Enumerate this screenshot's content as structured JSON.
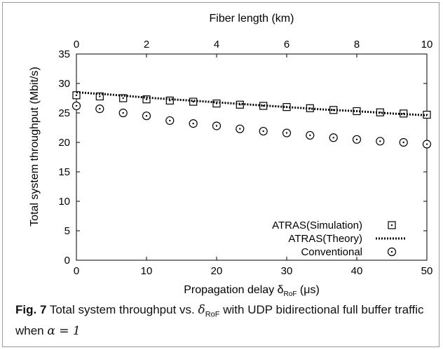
{
  "chart_data": {
    "type": "line",
    "xlabel": "Propagation delay δ",
    "xlabel_sub": "RoF",
    "xlabel_unit": " (μs)",
    "x2label": "Fiber length (km)",
    "ylabel": "Total system throughput (Mbit/s)",
    "xlim": [
      0,
      50
    ],
    "ylim": [
      0,
      35
    ],
    "x2lim": [
      0,
      10
    ],
    "xticks": [
      0,
      10,
      20,
      30,
      40,
      50
    ],
    "yticks": [
      0,
      5,
      10,
      15,
      20,
      25,
      30,
      35
    ],
    "x2ticks": [
      0,
      2,
      4,
      6,
      8,
      10
    ],
    "grid": false,
    "legend_position": "bottom-right",
    "series": [
      {
        "name": "ATRAS(Simulation)",
        "style": "boxed-dot-marker",
        "x": [
          0,
          3.33,
          6.67,
          10,
          13.33,
          16.67,
          20,
          23.33,
          26.67,
          30,
          33.33,
          36.67,
          40,
          43.33,
          46.67,
          50
        ],
        "y": [
          28.0,
          27.8,
          27.5,
          27.3,
          27.1,
          26.9,
          26.6,
          26.4,
          26.2,
          26.0,
          25.8,
          25.5,
          25.3,
          25.1,
          24.9,
          24.7
        ]
      },
      {
        "name": "ATRAS(Theory)",
        "style": "dotted-line",
        "x": [
          0,
          5,
          10,
          15,
          20,
          25,
          30,
          35,
          40,
          45,
          50
        ],
        "y": [
          28.5,
          28.1,
          27.6,
          27.2,
          26.8,
          26.4,
          26.0,
          25.6,
          25.3,
          24.9,
          24.6
        ]
      },
      {
        "name": "Conventional",
        "style": "circled-dot-marker",
        "x": [
          0,
          3.33,
          6.67,
          10,
          13.33,
          16.67,
          20,
          23.33,
          26.67,
          30,
          33.33,
          36.67,
          40,
          43.33,
          46.67,
          50
        ],
        "y": [
          26.2,
          25.7,
          25.0,
          24.5,
          23.7,
          23.2,
          22.8,
          22.3,
          21.9,
          21.6,
          21.2,
          20.8,
          20.5,
          20.2,
          20.0,
          19.7
        ]
      }
    ]
  },
  "caption": {
    "label": "Fig. 7",
    "text_1": " Total system throughput vs. ",
    "symbol": "δ",
    "symbol_sub": "RoF",
    "text_2": " with UDP bidirectional full buffer traffic when ",
    "alpha_expr": "α = 1"
  }
}
